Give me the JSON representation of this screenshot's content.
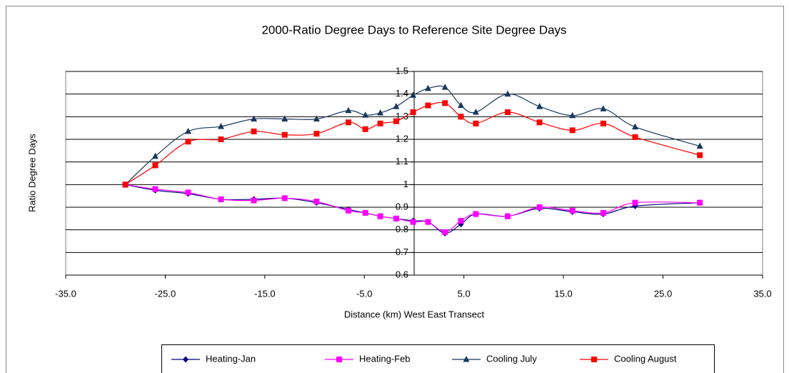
{
  "chart_data": {
    "type": "line",
    "title": "2000-Ratio Degree Days to Reference Site Degree Days",
    "x_label": "Distance (km) West East Transect",
    "y_label": "Ratio Degree Days",
    "x": [
      -29.0,
      -26.0,
      -22.7,
      -19.4,
      -16.1,
      -13.0,
      -9.8,
      -6.6,
      -4.9,
      -3.4,
      -1.8,
      -0.1,
      1.4,
      3.1,
      4.7,
      6.2,
      9.4,
      12.6,
      15.9,
      19.0,
      22.2,
      28.7
    ],
    "series": [
      {
        "name": "Heating-Jan",
        "color": "#000080",
        "marker": "diamond",
        "values": [
          1.0,
          0.975,
          0.96,
          0.935,
          0.935,
          0.94,
          0.92,
          0.89,
          0.875,
          0.86,
          0.85,
          0.84,
          0.835,
          0.785,
          0.825,
          0.87,
          0.86,
          0.895,
          0.88,
          0.87,
          0.905,
          0.92
        ]
      },
      {
        "name": "Heating-Feb",
        "color": "#ff00ff",
        "marker": "square",
        "values": [
          1.0,
          0.98,
          0.965,
          0.935,
          0.93,
          0.94,
          0.925,
          0.885,
          0.875,
          0.86,
          0.85,
          0.835,
          0.835,
          0.79,
          0.84,
          0.87,
          0.86,
          0.9,
          0.885,
          0.875,
          0.92,
          0.92
        ]
      },
      {
        "name": "Cooling July",
        "color": "#17375e",
        "marker": "triangle",
        "values": [
          1.0,
          1.125,
          1.235,
          1.257,
          1.29,
          1.29,
          1.29,
          1.327,
          1.307,
          1.317,
          1.345,
          1.395,
          1.425,
          1.43,
          1.35,
          1.32,
          1.4,
          1.345,
          1.305,
          1.335,
          1.255,
          1.17
        ]
      },
      {
        "name": "Cooling August",
        "color": "#ff0000",
        "marker": "square",
        "values": [
          1.0,
          1.085,
          1.19,
          1.2,
          1.235,
          1.22,
          1.225,
          1.275,
          1.245,
          1.27,
          1.28,
          1.32,
          1.35,
          1.36,
          1.3,
          1.27,
          1.32,
          1.275,
          1.24,
          1.27,
          1.21,
          1.13
        ]
      }
    ],
    "xlim": [
      -35,
      35
    ],
    "xticks": [
      {
        "value": -35,
        "label": "-35.0"
      },
      {
        "value": -25,
        "label": "-25.0"
      },
      {
        "value": -15,
        "label": "-15.0"
      },
      {
        "value": -5,
        "label": "-5.0"
      },
      {
        "value": 5,
        "label": "5.0"
      },
      {
        "value": 15,
        "label": "15.0"
      },
      {
        "value": 25,
        "label": "25.0"
      },
      {
        "value": 35,
        "label": "35.0"
      }
    ],
    "ylim": [
      0.6,
      1.5
    ],
    "yticks": [
      0.6,
      0.7,
      0.8,
      0.9,
      1,
      1.1,
      1.2,
      1.3,
      1.4,
      1.5
    ],
    "grid": true,
    "smooth": true,
    "legend": "bottom"
  }
}
